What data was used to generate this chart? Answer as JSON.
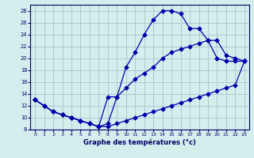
{
  "xlabel": "Graphe des températures (°c)",
  "background_color": "#d4eeee",
  "grid_color": "#a8cccc",
  "line_color": "#0000aa",
  "xlim": [
    -0.5,
    23.5
  ],
  "ylim": [
    8,
    29
  ],
  "xticks": [
    0,
    1,
    2,
    3,
    4,
    5,
    6,
    7,
    8,
    9,
    10,
    11,
    12,
    13,
    14,
    15,
    16,
    17,
    18,
    19,
    20,
    21,
    22,
    23
  ],
  "yticks": [
    8,
    10,
    12,
    14,
    16,
    18,
    20,
    22,
    24,
    26,
    28
  ],
  "series_max_x": [
    0,
    1,
    2,
    3,
    4,
    5,
    6,
    7,
    8,
    9,
    10,
    11,
    12,
    13,
    14,
    15,
    16,
    17,
    18,
    19,
    20,
    21,
    22,
    23
  ],
  "series_max_y": [
    13,
    12,
    11,
    10.5,
    10,
    9.5,
    9,
    8.5,
    9,
    13.5,
    18.5,
    21,
    24,
    26.5,
    28,
    28,
    27.5,
    25,
    25,
    23,
    20,
    19.5,
    19.5,
    19.5
  ],
  "series_avg_x": [
    0,
    2,
    3,
    4,
    5,
    6,
    7,
    8,
    9,
    10,
    11,
    12,
    13,
    14,
    15,
    16,
    17,
    18,
    19,
    20,
    21,
    22,
    23
  ],
  "series_avg_y": [
    13,
    11,
    10.5,
    10,
    9.5,
    9,
    8.5,
    13.5,
    13.5,
    15,
    16.5,
    17.5,
    18.5,
    20,
    21,
    21.5,
    22,
    22.5,
    23,
    23,
    20.5,
    20,
    19.5
  ],
  "series_min_x": [
    0,
    1,
    2,
    3,
    4,
    5,
    6,
    7,
    8,
    9,
    10,
    11,
    12,
    13,
    14,
    15,
    16,
    17,
    18,
    19,
    20,
    21,
    22,
    23
  ],
  "series_min_y": [
    13,
    12,
    11,
    10.5,
    10,
    9.5,
    9,
    8.5,
    8.5,
    9,
    9.5,
    10,
    10.5,
    11,
    11.5,
    12,
    12.5,
    13,
    13.5,
    14,
    14.5,
    15,
    15.5,
    19.5
  ]
}
